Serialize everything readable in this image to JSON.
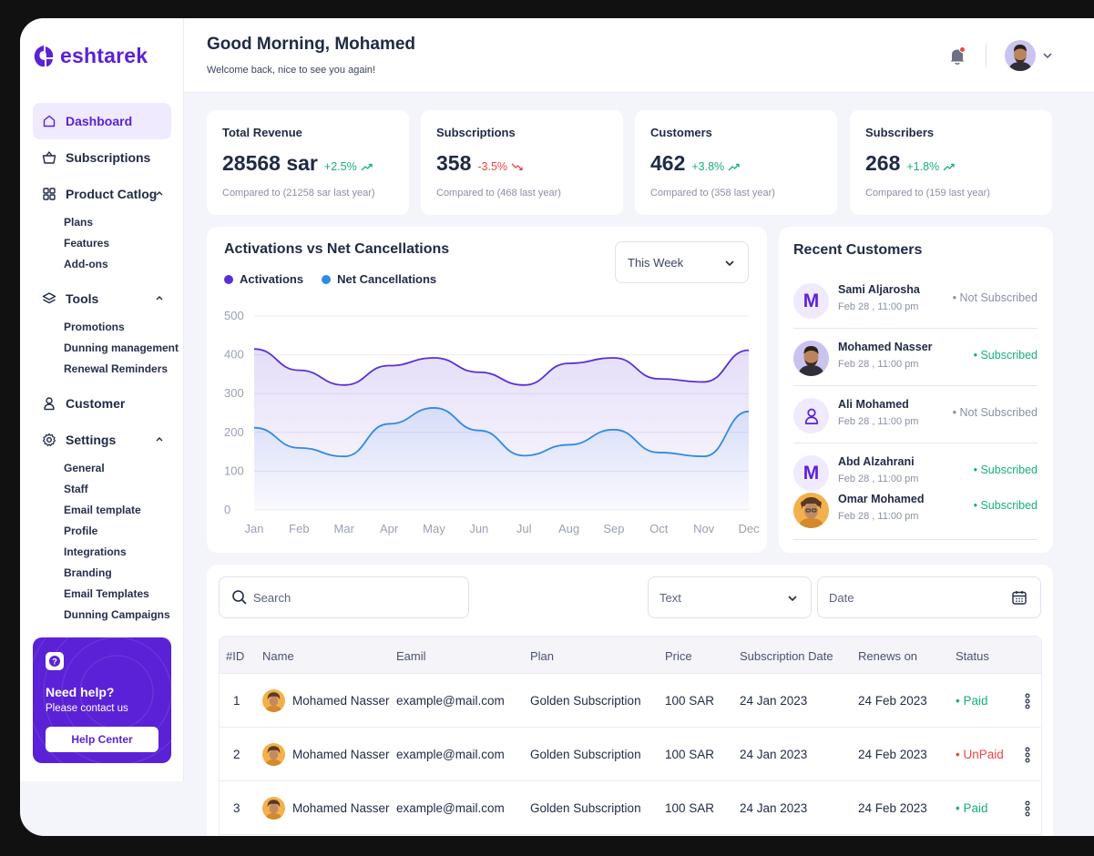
{
  "brand": {
    "name": "eshtarek",
    "color": "#5b21d6"
  },
  "header": {
    "greeting": "Good Morning, Mohamed",
    "subtitle": "Welcome back, nice to see you again!"
  },
  "sidebar": {
    "items": [
      {
        "label": "Dashboard",
        "icon": "home-icon",
        "active": true
      },
      {
        "label": "Subscriptions",
        "icon": "basket-icon"
      },
      {
        "label": "Product Catlog",
        "icon": "grid-icon",
        "expanded": true,
        "children": [
          "Plans",
          "Features",
          "Add-ons"
        ]
      },
      {
        "label": "Tools",
        "icon": "layers-icon",
        "expanded": true,
        "children": [
          "Promotions",
          "Dunning management",
          "Renewal Reminders"
        ]
      },
      {
        "label": "Customer",
        "icon": "user-icon"
      },
      {
        "label": "Settings",
        "icon": "gear-icon",
        "expanded": true,
        "children": [
          "General",
          "Staff",
          "Email template",
          "Profile",
          "Integrations",
          "Branding",
          "Email Templates",
          "Dunning Campaigns"
        ]
      }
    ],
    "help": {
      "title": "Need help?",
      "subtitle": "Please contact us",
      "button": "Help Center"
    }
  },
  "stats": [
    {
      "title": "Total Revenue",
      "value": "28568 sar",
      "delta": "+2.5%",
      "trend": "up",
      "compare": "Compared to (21258 sar last year)"
    },
    {
      "title": "Subscriptions",
      "value": "358",
      "delta": "-3.5%",
      "trend": "down",
      "compare": "Compared to (468 last year)"
    },
    {
      "title": "Customers",
      "value": "462",
      "delta": "+3.8%",
      "trend": "up",
      "compare": "Compared to (358 last year)"
    },
    {
      "title": "Subscribers",
      "value": "268",
      "delta": "+1.8%",
      "trend": "up",
      "compare": "Compared to (159 last year)"
    }
  ],
  "chart": {
    "title": "Activations vs Net Cancellations",
    "period": "This Week",
    "legend": [
      "Activations",
      "Net Cancellations"
    ]
  },
  "chart_data": {
    "type": "area",
    "title": "Activations vs Net Cancellations",
    "categories": [
      "Jan",
      "Feb",
      "Mar",
      "Apr",
      "May",
      "Jun",
      "Jul",
      "Aug",
      "Sep",
      "Oct",
      "Nov",
      "Dec"
    ],
    "yticks": [
      0,
      100,
      200,
      300,
      400,
      500
    ],
    "ylim": [
      0,
      500
    ],
    "series": [
      {
        "name": "Activations",
        "color": "#5b2fd6",
        "values": [
          415,
          360,
          322,
          372,
          392,
          355,
          322,
          378,
          392,
          338,
          330,
          412
        ]
      },
      {
        "name": "Net Cancellations",
        "color": "#2f8be6",
        "values": [
          212,
          160,
          138,
          222,
          263,
          205,
          140,
          168,
          207,
          148,
          138,
          254
        ]
      }
    ],
    "grid": true
  },
  "recent": {
    "title": "Recent Customers",
    "customers": [
      {
        "name": "Sami Aljarosha",
        "date": "Feb 28 , 11:00 pm",
        "status": "Not Subscribed",
        "avatar": "M",
        "kind": "letter"
      },
      {
        "name": "Mohamed Nasser",
        "date": "Feb 28 , 11:00 pm",
        "status": "Subscribed",
        "kind": "photo-man"
      },
      {
        "name": "Ali Mohamed",
        "date": "Feb 28 , 11:00 pm",
        "status": "Not Subscribed",
        "kind": "user-icon"
      },
      {
        "name": "Abd Alzahrani",
        "date": "Feb 28 , 11:00 pm",
        "status": "Subscribed",
        "avatar": "M",
        "kind": "letter"
      },
      {
        "name": "Omar Mohamed",
        "date": "Feb 28 , 11:00 pm",
        "status": "Subscribed",
        "kind": "photo-curly"
      }
    ]
  },
  "table": {
    "search_placeholder": "Search",
    "filter_text": "Text",
    "filter_date": "Date",
    "columns": [
      "#ID",
      "Name",
      "Eamil",
      "Plan",
      "Price",
      "Subscription Date",
      "Renews on",
      "Status"
    ],
    "rows": [
      {
        "id": "1",
        "name": "Mohamed Nasser",
        "email": "example@mail.com",
        "plan": "Golden Subscription",
        "price": "100 SAR",
        "sub_date": "24 Jan 2023",
        "renews": "24 Feb 2023",
        "status": "Paid"
      },
      {
        "id": "2",
        "name": "Mohamed Nasser",
        "email": "example@mail.com",
        "plan": "Golden Subscription",
        "price": "100 SAR",
        "sub_date": "24 Jan 2023",
        "renews": "24 Feb 2023",
        "status": "UnPaid"
      },
      {
        "id": "3",
        "name": "Mohamed Nasser",
        "email": "example@mail.com",
        "plan": "Golden Subscription",
        "price": "100 SAR",
        "sub_date": "24 Jan 2023",
        "renews": "24 Feb 2023",
        "status": "Paid"
      }
    ]
  }
}
